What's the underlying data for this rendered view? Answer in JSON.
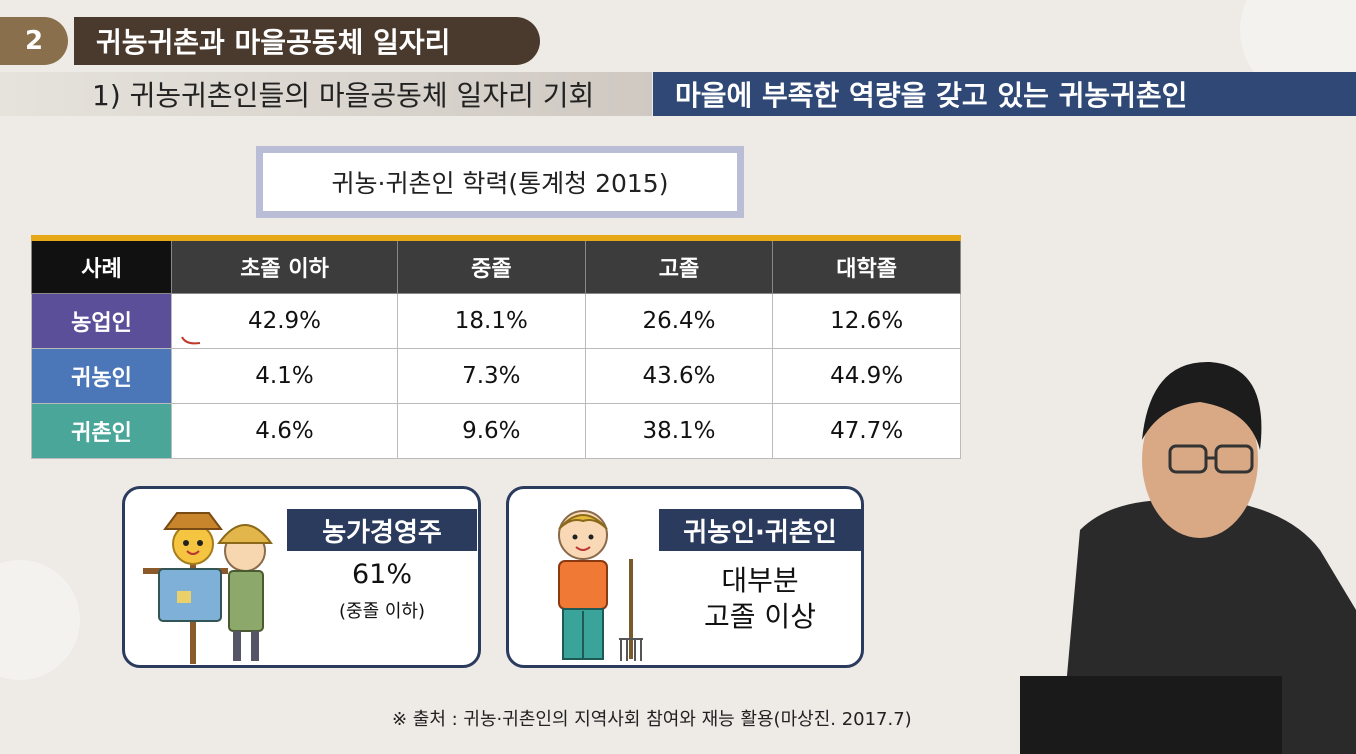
{
  "header": {
    "section_number": "2",
    "section_title": "귀농귀촌과 마을공동체 일자리",
    "subtitle": "1) 귀농귀촌인들의 마을공동체 일자리 기회",
    "highlight": "마을에 부족한 역량을 갖고 있는 귀농귀촌인"
  },
  "table": {
    "title": "귀농·귀촌인 학력(통계청 2015)",
    "columns": [
      "사례",
      "초졸 이하",
      "중졸",
      "고졸",
      "대학졸"
    ],
    "rows": [
      {
        "label": "농업인",
        "values": [
          "42.9%",
          "18.1%",
          "26.4%",
          "12.6%"
        ],
        "color": "#5b4f9a"
      },
      {
        "label": "귀농인",
        "values": [
          "4.1%",
          "7.3%",
          "43.6%",
          "44.9%"
        ],
        "color": "#4b77b8"
      },
      {
        "label": "귀촌인",
        "values": [
          "4.6%",
          "9.6%",
          "38.1%",
          "47.7%"
        ],
        "color": "#4ba69a"
      }
    ],
    "accent_color": "#e7a817"
  },
  "cards": {
    "left": {
      "badge": "농가경영주",
      "value": "61%",
      "note": "(중졸 이하)",
      "illustration": "scarecrow-and-farmer-illustration"
    },
    "right": {
      "badge": "귀농인·귀촌인",
      "line1": "대부분",
      "line2": "고졸 이상",
      "illustration": "young-farmer-with-pitchfork-illustration"
    }
  },
  "source": "※ 출처 : 귀농·귀촌인의 지역사회 참여와 재능 활용(마상진. 2017.7)",
  "colors": {
    "section_num_bg": "#8a6f4c",
    "section_title_bg": "#4a3a2d",
    "highlight_bg": "#2f4876",
    "card_border": "#2b3b5e"
  }
}
